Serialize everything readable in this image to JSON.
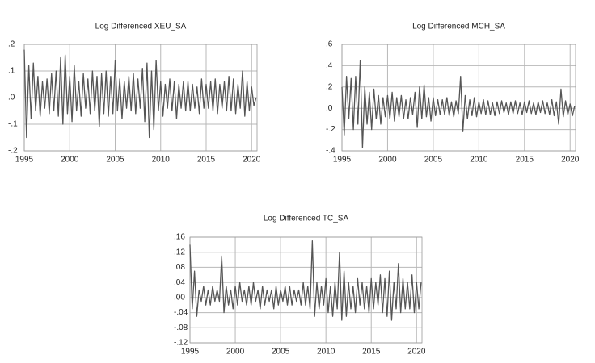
{
  "chart_data": [
    {
      "type": "line",
      "title": "Log Differenced XEU_SA",
      "color": "#555555",
      "grid": true,
      "x": [
        1995,
        1995.25,
        1995.5,
        1995.75,
        1996,
        1996.25,
        1996.5,
        1996.75,
        1997,
        1997.25,
        1997.5,
        1997.75,
        1998,
        1998.25,
        1998.5,
        1998.75,
        1999,
        1999.25,
        1999.5,
        1999.75,
        2000,
        2000.25,
        2000.5,
        2000.75,
        2001,
        2001.25,
        2001.5,
        2001.75,
        2002,
        2002.25,
        2002.5,
        2002.75,
        2003,
        2003.25,
        2003.5,
        2003.75,
        2004,
        2004.25,
        2004.5,
        2004.75,
        2005,
        2005.25,
        2005.5,
        2005.75,
        2006,
        2006.25,
        2006.5,
        2006.75,
        2007,
        2007.25,
        2007.5,
        2007.75,
        2008,
        2008.25,
        2008.5,
        2008.75,
        2009,
        2009.25,
        2009.5,
        2009.75,
        2010,
        2010.25,
        2010.5,
        2010.75,
        2011,
        2011.25,
        2011.5,
        2011.75,
        2012,
        2012.25,
        2012.5,
        2012.75,
        2013,
        2013.25,
        2013.5,
        2013.75,
        2014,
        2014.25,
        2014.5,
        2014.75,
        2015,
        2015.25,
        2015.5,
        2015.75,
        2016,
        2016.25,
        2016.5,
        2016.75,
        2017,
        2017.25,
        2017.5,
        2017.75,
        2018,
        2018.25,
        2018.5,
        2018.75,
        2019,
        2019.25,
        2019.5,
        2019.75,
        2020,
        2020.25,
        2020.5
      ],
      "values": [
        0.18,
        -0.15,
        0.12,
        -0.08,
        0.13,
        -0.05,
        0.08,
        -0.07,
        0.06,
        -0.04,
        0.07,
        -0.06,
        0.09,
        -0.05,
        0.1,
        -0.07,
        0.15,
        -0.1,
        0.16,
        -0.06,
        0.08,
        -0.09,
        0.12,
        -0.05,
        0.06,
        -0.07,
        0.09,
        -0.04,
        0.07,
        -0.06,
        0.1,
        -0.05,
        0.08,
        -0.11,
        0.09,
        -0.06,
        0.1,
        -0.07,
        0.08,
        -0.06,
        0.14,
        -0.05,
        0.07,
        -0.08,
        0.06,
        -0.04,
        0.08,
        -0.05,
        0.09,
        -0.06,
        0.07,
        -0.04,
        0.11,
        -0.09,
        0.13,
        -0.15,
        0.1,
        -0.12,
        0.14,
        -0.05,
        0.06,
        -0.07,
        0.05,
        -0.04,
        0.07,
        -0.05,
        0.06,
        -0.08,
        0.05,
        -0.04,
        0.06,
        -0.05,
        0.06,
        -0.05,
        0.05,
        -0.04,
        0.04,
        -0.06,
        0.07,
        -0.04,
        0.05,
        -0.04,
        0.06,
        -0.05,
        0.07,
        -0.06,
        0.05,
        -0.04,
        0.06,
        -0.05,
        0.08,
        -0.05,
        0.07,
        -0.06,
        0.05,
        -0.04,
        0.1,
        -0.07,
        0.06,
        -0.05,
        0.04,
        -0.03,
        0.0
      ],
      "xlim": [
        1995,
        2020.6
      ],
      "xticks": [
        1995,
        2000,
        2005,
        2010,
        2015,
        2020
      ],
      "ylim": [
        -0.2,
        0.2
      ],
      "yticks": [
        {
          "value": 0.2,
          "label": ".2"
        },
        {
          "value": 0.1,
          "label": ".1"
        },
        {
          "value": 0,
          "label": ".0"
        },
        {
          "value": -0.1,
          "label": "-.1"
        },
        {
          "value": -0.2,
          "label": "-.2"
        }
      ]
    },
    {
      "type": "line",
      "title": "Log Differenced MCH_SA",
      "color": "#555555",
      "grid": true,
      "x": [
        1995,
        1995.25,
        1995.5,
        1995.75,
        1996,
        1996.25,
        1996.5,
        1996.75,
        1997,
        1997.25,
        1997.5,
        1997.75,
        1998,
        1998.25,
        1998.5,
        1998.75,
        1999,
        1999.25,
        1999.5,
        1999.75,
        2000,
        2000.25,
        2000.5,
        2000.75,
        2001,
        2001.25,
        2001.5,
        2001.75,
        2002,
        2002.25,
        2002.5,
        2002.75,
        2003,
        2003.25,
        2003.5,
        2003.75,
        2004,
        2004.25,
        2004.5,
        2004.75,
        2005,
        2005.25,
        2005.5,
        2005.75,
        2006,
        2006.25,
        2006.5,
        2006.75,
        2007,
        2007.25,
        2007.5,
        2007.75,
        2008,
        2008.25,
        2008.5,
        2008.75,
        2009,
        2009.25,
        2009.5,
        2009.75,
        2010,
        2010.25,
        2010.5,
        2010.75,
        2011,
        2011.25,
        2011.5,
        2011.75,
        2012,
        2012.25,
        2012.5,
        2012.75,
        2013,
        2013.25,
        2013.5,
        2013.75,
        2014,
        2014.25,
        2014.5,
        2014.75,
        2015,
        2015.25,
        2015.5,
        2015.75,
        2016,
        2016.25,
        2016.5,
        2016.75,
        2017,
        2017.25,
        2017.5,
        2017.75,
        2018,
        2018.25,
        2018.5,
        2018.75,
        2019,
        2019.25,
        2019.5,
        2019.75,
        2020,
        2020.25,
        2020.5
      ],
      "values": [
        0.2,
        -0.25,
        0.3,
        -0.1,
        0.28,
        -0.2,
        0.3,
        -0.15,
        0.45,
        -0.37,
        0.2,
        -0.15,
        0.15,
        -0.2,
        0.18,
        -0.1,
        0.12,
        -0.15,
        0.1,
        -0.08,
        0.12,
        -0.1,
        0.15,
        -0.12,
        0.1,
        -0.08,
        0.12,
        -0.1,
        0.08,
        -0.1,
        0.1,
        -0.06,
        0.15,
        -0.18,
        0.2,
        -0.1,
        0.22,
        -0.08,
        0.1,
        -0.12,
        0.1,
        -0.07,
        0.08,
        -0.06,
        0.08,
        -0.06,
        0.1,
        -0.07,
        0.06,
        -0.08,
        0.07,
        -0.05,
        0.3,
        -0.22,
        0.12,
        -0.1,
        0.08,
        -0.07,
        0.1,
        -0.08,
        0.06,
        -0.05,
        0.08,
        -0.06,
        0.07,
        -0.06,
        0.05,
        -0.07,
        0.06,
        -0.05,
        0.07,
        -0.04,
        0.05,
        -0.06,
        0.06,
        -0.05,
        0.07,
        -0.05,
        0.05,
        -0.06,
        0.06,
        -0.04,
        0.07,
        -0.05,
        0.05,
        -0.06,
        0.06,
        -0.04,
        0.07,
        -0.05,
        0.05,
        -0.06,
        0.08,
        -0.07,
        0.06,
        -0.15,
        0.18,
        -0.08,
        0.07,
        -0.06,
        0.04,
        -0.07,
        0.02
      ],
      "xlim": [
        1995,
        2020.6
      ],
      "xticks": [
        1995,
        2000,
        2005,
        2010,
        2015,
        2020
      ],
      "ylim": [
        -0.4,
        0.6
      ],
      "yticks": [
        {
          "value": 0.6,
          "label": ".6"
        },
        {
          "value": 0.4,
          "label": ".4"
        },
        {
          "value": 0.2,
          "label": ".2"
        },
        {
          "value": 0,
          "label": ".0"
        },
        {
          "value": -0.2,
          "label": "-.2"
        },
        {
          "value": -0.4,
          "label": "-.4"
        }
      ]
    },
    {
      "type": "line",
      "title": "Log Differenced TC_SA",
      "color": "#555555",
      "grid": true,
      "x": [
        1995,
        1995.25,
        1995.5,
        1995.75,
        1996,
        1996.25,
        1996.5,
        1996.75,
        1997,
        1997.25,
        1997.5,
        1997.75,
        1998,
        1998.25,
        1998.5,
        1998.75,
        1999,
        1999.25,
        1999.5,
        1999.75,
        2000,
        2000.25,
        2000.5,
        2000.75,
        2001,
        2001.25,
        2001.5,
        2001.75,
        2002,
        2002.25,
        2002.5,
        2002.75,
        2003,
        2003.25,
        2003.5,
        2003.75,
        2004,
        2004.25,
        2004.5,
        2004.75,
        2005,
        2005.25,
        2005.5,
        2005.75,
        2006,
        2006.25,
        2006.5,
        2006.75,
        2007,
        2007.25,
        2007.5,
        2007.75,
        2008,
        2008.25,
        2008.5,
        2008.75,
        2009,
        2009.25,
        2009.5,
        2009.75,
        2010,
        2010.25,
        2010.5,
        2010.75,
        2011,
        2011.25,
        2011.5,
        2011.75,
        2012,
        2012.25,
        2012.5,
        2012.75,
        2013,
        2013.25,
        2013.5,
        2013.75,
        2014,
        2014.25,
        2014.5,
        2014.75,
        2015,
        2015.25,
        2015.5,
        2015.75,
        2016,
        2016.25,
        2016.5,
        2016.75,
        2017,
        2017.25,
        2017.5,
        2017.75,
        2018,
        2018.25,
        2018.5,
        2018.75,
        2019,
        2019.25,
        2019.5,
        2019.75,
        2020,
        2020.25,
        2020.5
      ],
      "values": [
        0.14,
        -0.03,
        0.07,
        -0.05,
        0.02,
        -0.01,
        0.03,
        -0.02,
        0.02,
        -0.02,
        0.03,
        -0.01,
        0.02,
        -0.01,
        0.11,
        -0.04,
        0.03,
        -0.02,
        0.02,
        -0.03,
        0.03,
        -0.02,
        0.04,
        -0.01,
        0.02,
        -0.02,
        0.03,
        -0.02,
        0.04,
        -0.01,
        0.02,
        -0.03,
        0.03,
        -0.02,
        0.02,
        -0.01,
        0.02,
        -0.03,
        0.03,
        -0.02,
        0.02,
        -0.01,
        0.03,
        -0.02,
        0.03,
        -0.02,
        0.02,
        -0.01,
        0.02,
        -0.02,
        0.04,
        -0.02,
        0.03,
        -0.03,
        0.15,
        -0.05,
        0.04,
        -0.03,
        0.03,
        -0.02,
        0.05,
        -0.04,
        0.03,
        -0.05,
        0.04,
        -0.03,
        0.12,
        -0.06,
        0.07,
        -0.05,
        0.04,
        -0.03,
        0.03,
        -0.04,
        0.05,
        -0.02,
        0.04,
        -0.03,
        0.03,
        -0.04,
        0.05,
        -0.03,
        0.04,
        -0.02,
        0.06,
        -0.04,
        0.05,
        -0.05,
        0.07,
        -0.06,
        0.04,
        -0.03,
        0.09,
        -0.04,
        0.05,
        -0.03,
        0.04,
        -0.03,
        0.06,
        -0.04,
        0.04,
        -0.03,
        0.04
      ],
      "xlim": [
        1995,
        2020.6
      ],
      "xticks": [
        1995,
        2000,
        2005,
        2010,
        2015,
        2020
      ],
      "ylim": [
        -0.12,
        0.16
      ],
      "yticks": [
        {
          "value": 0.16,
          "label": ".16"
        },
        {
          "value": 0.12,
          "label": ".12"
        },
        {
          "value": 0.08,
          "label": ".08"
        },
        {
          "value": 0.04,
          "label": ".04"
        },
        {
          "value": 0,
          "label": ".00"
        },
        {
          "value": -0.04,
          "label": "-.04"
        },
        {
          "value": -0.08,
          "label": "-.08"
        },
        {
          "value": -0.12,
          "label": "-.12"
        }
      ]
    }
  ]
}
